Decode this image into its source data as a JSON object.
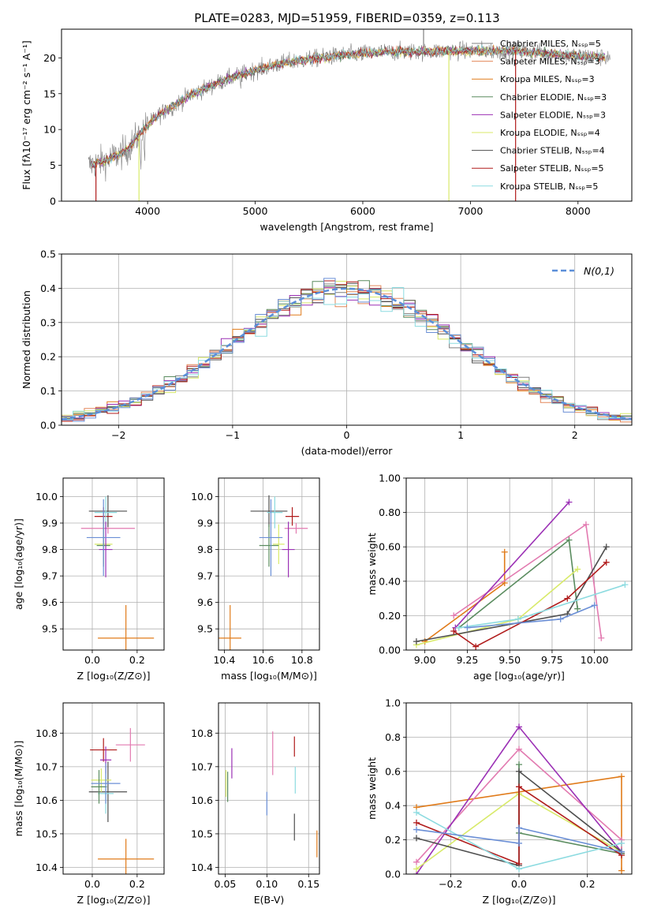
{
  "figure": {
    "title": "PLATE=0283, MJD=51959, FIBERID=0359, z=0.113",
    "colors": {
      "chabrier_miles": "#7f7f7f",
      "salpeter_miles": "#e3875a",
      "kroupa_miles": "#e07b1a",
      "chabrier_elodie": "#5a8c5f",
      "salpeter_elodie": "#9b30b5",
      "kroupa_elodie": "#d8ea6a",
      "chabrier_stelib": "#4f4f4f",
      "salpeter_stelib": "#b01b1b",
      "kroupa_stelib": "#8cdbe0",
      "normal_line": "#5b8fd9",
      "extra_blue": "#6b8fd6",
      "extra_pink": "#e27ab0"
    }
  },
  "chart_data": [
    {
      "type": "line",
      "title": "PLATE=0283, MJD=51959, FIBERID=0359, z=0.113",
      "xlabel": "wavelength [Angstrom, rest frame]",
      "ylabel": "Flux [fλ10⁻¹⁷ erg cm⁻² s⁻¹ A⁻¹]",
      "xlim": [
        3200,
        8500
      ],
      "ylim": [
        0,
        24
      ],
      "xticks": [
        4000,
        5000,
        6000,
        7000,
        8000
      ],
      "yticks": [
        0,
        5,
        10,
        15,
        20
      ],
      "legend_position": "top-right",
      "series": [
        {
          "name": "Chabrier MILES, Nₛₛₚ=5",
          "color": "#7f7f7f"
        },
        {
          "name": "Salpeter MILES, Nₛₛₚ=3",
          "color": "#e3875a"
        },
        {
          "name": "Kroupa MILES, Nₛₛₚ=3",
          "color": "#e07b1a"
        },
        {
          "name": "Chabrier ELODIE, Nₛₛₚ=3",
          "color": "#5a8c5f"
        },
        {
          "name": "Salpeter ELODIE, Nₛₛₚ=3",
          "color": "#9b30b5"
        },
        {
          "name": "Kroupa ELODIE, Nₛₛₚ=4",
          "color": "#d8ea6a"
        },
        {
          "name": "Chabrier STELIB, Nₛₛₚ=4",
          "color": "#4f4f4f"
        },
        {
          "name": "Salpeter STELIB, Nₛₛₚ=5",
          "color": "#b01b1b"
        },
        {
          "name": "Kroupa STELIB, Nₛₛₚ=5",
          "color": "#8cdbe0"
        }
      ],
      "continuum": {
        "x": [
          3450,
          3600,
          3800,
          3950,
          4100,
          4400,
          4700,
          5000,
          5300,
          5600,
          5900,
          6200,
          6600,
          7000,
          7400,
          7800,
          8200
        ],
        "y": [
          5.0,
          5.6,
          7.0,
          9.8,
          12.0,
          14.8,
          16.8,
          18.3,
          19.4,
          20.0,
          20.5,
          20.8,
          20.9,
          21.0,
          21.0,
          20.5,
          20.1
        ]
      }
    },
    {
      "type": "bar",
      "xlabel": "(data-model)/error",
      "ylabel": "Normed distribution",
      "xlim": [
        -2.5,
        2.5
      ],
      "ylim": [
        0,
        0.5
      ],
      "xticks": [
        -2,
        -1,
        0,
        1,
        2
      ],
      "yticks": [
        0.0,
        0.1,
        0.2,
        0.3,
        0.4,
        0.5
      ],
      "bin_width": 0.1,
      "normal": {
        "name": "N(0,1)",
        "mean": 0,
        "sigma": 1
      },
      "legend_position": "top-right"
    },
    {
      "type": "scatter",
      "xlabel": "Z [log₁₀(Z/Z⊙)]",
      "ylabel": "age  [log₁₀(age/yr)]",
      "xlim": [
        -0.13,
        0.32
      ],
      "ylim": [
        9.42,
        10.07
      ],
      "xticks": [
        0.0,
        0.2
      ],
      "yticks": [
        9.5,
        9.6,
        9.7,
        9.8,
        9.9,
        10.0
      ],
      "points": [
        {
          "x": 0.15,
          "y": 9.465,
          "xerr": 0.25,
          "yerr": 0.25,
          "color": "#e07b1a"
        },
        {
          "x": 0.07,
          "y": 9.88,
          "xerr": 0.24,
          "yerr": 0.04,
          "color": "#e27ab0"
        },
        {
          "x": 0.07,
          "y": 9.945,
          "xerr": 0.17,
          "yerr": 0.12,
          "color": "#4f4f4f"
        },
        {
          "x": 0.05,
          "y": 9.925,
          "xerr": 0.08,
          "yerr": 0.07,
          "color": "#b01b1b"
        },
        {
          "x": 0.06,
          "y": 9.94,
          "xerr": 0.1,
          "yerr": 0.12,
          "color": "#8cdbe0"
        },
        {
          "x": 0.05,
          "y": 9.82,
          "xerr": 0.08,
          "yerr": 0.15,
          "color": "#d8ea6a"
        },
        {
          "x": 0.05,
          "y": 9.815,
          "xerr": 0.06,
          "yerr": 0.16,
          "color": "#5a8c5f"
        },
        {
          "x": 0.06,
          "y": 9.8,
          "xerr": 0.06,
          "yerr": 0.21,
          "color": "#9b30b5"
        },
        {
          "x": 0.05,
          "y": 9.845,
          "xerr": 0.15,
          "yerr": 0.29,
          "color": "#6b8fd6"
        }
      ]
    },
    {
      "type": "scatter",
      "xlabel": "mass [log₁₀(M/M⊙)]",
      "xlim": [
        10.37,
        10.89
      ],
      "ylim": [
        9.42,
        10.07
      ],
      "xticks": [
        10.4,
        10.6,
        10.8
      ],
      "yticks": [
        9.5,
        9.6,
        9.7,
        9.8,
        9.9,
        10.0
      ],
      "points": [
        {
          "x": 10.43,
          "y": 9.465,
          "xerr": 0.115,
          "yerr": 0.25,
          "color": "#e07b1a"
        },
        {
          "x": 10.77,
          "y": 9.88,
          "xerr": 0.12,
          "yerr": 0.04,
          "color": "#e27ab0"
        },
        {
          "x": 10.63,
          "y": 9.945,
          "xerr": 0.19,
          "yerr": 0.12,
          "color": "#4f4f4f"
        },
        {
          "x": 10.75,
          "y": 9.925,
          "xerr": 0.07,
          "yerr": 0.07,
          "color": "#b01b1b"
        },
        {
          "x": 10.66,
          "y": 9.94,
          "xerr": 0.08,
          "yerr": 0.12,
          "color": "#8cdbe0"
        },
        {
          "x": 10.68,
          "y": 9.82,
          "xerr": 0.06,
          "yerr": 0.15,
          "color": "#d8ea6a"
        },
        {
          "x": 10.63,
          "y": 9.815,
          "xerr": 0.1,
          "yerr": 0.16,
          "color": "#5a8c5f"
        },
        {
          "x": 10.73,
          "y": 9.8,
          "xerr": 0.065,
          "yerr": 0.21,
          "color": "#9b30b5"
        },
        {
          "x": 10.64,
          "y": 9.845,
          "xerr": 0.12,
          "yerr": 0.29,
          "color": "#6b8fd6"
        }
      ]
    },
    {
      "type": "line",
      "xlabel": "age  [log₁₀(age/yr)]",
      "ylabel": "mass weight",
      "xlim": [
        8.89,
        10.22
      ],
      "ylim": [
        0,
        1.0
      ],
      "xticks": [
        9.0,
        9.25,
        9.5,
        9.75,
        10.0
      ],
      "yticks": [
        0.0,
        0.2,
        0.4,
        0.6,
        0.8,
        1.0
      ],
      "series": [
        {
          "color": "#e07b1a",
          "x": [
            9.0,
            9.47,
            9.47
          ],
          "y": [
            0.05,
            0.39,
            0.57
          ]
        },
        {
          "color": "#e27ab0",
          "x": [
            9.17,
            9.95,
            10.04
          ],
          "y": [
            0.2,
            0.73,
            0.07
          ]
        },
        {
          "color": "#9b30b5",
          "x": [
            9.18,
            9.85
          ],
          "y": [
            0.13,
            0.86
          ]
        },
        {
          "color": "#5a8c5f",
          "x": [
            9.2,
            9.85,
            9.9
          ],
          "y": [
            0.13,
            0.64,
            0.24
          ]
        },
        {
          "color": "#d8ea6a",
          "x": [
            8.95,
            9.55,
            9.9
          ],
          "y": [
            0.03,
            0.18,
            0.47
          ]
        },
        {
          "color": "#4f4f4f",
          "x": [
            8.95,
            9.84,
            10.07
          ],
          "y": [
            0.05,
            0.21,
            0.6
          ]
        },
        {
          "color": "#b01b1b",
          "x": [
            9.17,
            9.3,
            9.84,
            10.07
          ],
          "y": [
            0.11,
            0.02,
            0.3,
            0.51
          ]
        },
        {
          "color": "#8cdbe0",
          "x": [
            9.2,
            9.55,
            10.18
          ],
          "y": [
            0.13,
            0.18,
            0.38
          ]
        },
        {
          "color": "#6b8fd6",
          "x": [
            9.25,
            9.8,
            10.0
          ],
          "y": [
            0.13,
            0.18,
            0.26
          ]
        }
      ]
    },
    {
      "type": "scatter",
      "xlabel": "Z [log₁₀(Z/Z⊙)]",
      "ylabel": "mass [log₁₀(M/M⊙)]",
      "xlim": [
        -0.13,
        0.32
      ],
      "ylim": [
        10.38,
        10.89
      ],
      "xticks": [
        0.0,
        0.2
      ],
      "yticks": [
        10.4,
        10.5,
        10.6,
        10.7,
        10.8
      ],
      "points": [
        {
          "x": 0.15,
          "y": 10.425,
          "xerr": 0.25,
          "yerr": 0.12,
          "color": "#e07b1a"
        },
        {
          "x": 0.17,
          "y": 10.765,
          "xerr": 0.13,
          "yerr": 0.1,
          "color": "#e27ab0"
        },
        {
          "x": 0.07,
          "y": 10.625,
          "xerr": 0.17,
          "yerr": 0.18,
          "color": "#4f4f4f"
        },
        {
          "x": 0.05,
          "y": 10.75,
          "xerr": 0.12,
          "yerr": 0.07,
          "color": "#b01b1b"
        },
        {
          "x": 0.06,
          "y": 10.62,
          "xerr": 0.07,
          "yerr": 0.12,
          "color": "#8cdbe0"
        },
        {
          "x": 0.04,
          "y": 10.66,
          "xerr": 0.09,
          "yerr": 0.07,
          "color": "#d8ea6a"
        },
        {
          "x": 0.03,
          "y": 10.64,
          "xerr": 0.07,
          "yerr": 0.1,
          "color": "#5a8c5f"
        },
        {
          "x": 0.06,
          "y": 10.72,
          "xerr": 0.05,
          "yerr": 0.08,
          "color": "#9b30b5"
        },
        {
          "x": 0.06,
          "y": 10.65,
          "xerr": 0.13,
          "yerr": 0.12,
          "color": "#6b8fd6"
        }
      ]
    },
    {
      "type": "scatter",
      "xlabel": "E(B-V)",
      "xlim": [
        0.042,
        0.163
      ],
      "ylim": [
        10.38,
        10.89
      ],
      "xticks": [
        0.05,
        0.1,
        0.15
      ],
      "yticks": [
        10.4,
        10.5,
        10.6,
        10.7,
        10.8
      ],
      "points": [
        {
          "x": 0.16,
          "y": 10.47,
          "yerr": 0.08,
          "color": "#e07b1a"
        },
        {
          "x": 0.107,
          "y": 10.74,
          "yerr": 0.13,
          "color": "#e27ab0"
        },
        {
          "x": 0.133,
          "y": 10.52,
          "yerr": 0.08,
          "color": "#4f4f4f"
        },
        {
          "x": 0.133,
          "y": 10.76,
          "yerr": 0.06,
          "color": "#b01b1b"
        },
        {
          "x": 0.134,
          "y": 10.66,
          "yerr": 0.08,
          "color": "#8cdbe0"
        },
        {
          "x": 0.051,
          "y": 10.65,
          "yerr": 0.08,
          "color": "#d8ea6a"
        },
        {
          "x": 0.053,
          "y": 10.64,
          "yerr": 0.09,
          "color": "#5a8c5f"
        },
        {
          "x": 0.058,
          "y": 10.71,
          "yerr": 0.09,
          "color": "#9b30b5"
        },
        {
          "x": 0.1,
          "y": 10.59,
          "yerr": 0.07,
          "color": "#6b8fd6"
        }
      ]
    },
    {
      "type": "line",
      "xlabel": "Z [log₁₀(Z/Z⊙)]",
      "ylabel": "mass weight",
      "xlim": [
        -0.33,
        0.33
      ],
      "ylim": [
        0,
        1.0
      ],
      "xticks": [
        -0.2,
        0.0,
        0.2
      ],
      "yticks": [
        0.0,
        0.2,
        0.4,
        0.6,
        0.8,
        1.0
      ],
      "series": [
        {
          "color": "#e07b1a",
          "x": [
            -0.3,
            0.3,
            0.3,
            0.3
          ],
          "y": [
            0.39,
            0.57,
            0.02,
            0.12
          ]
        },
        {
          "color": "#e27ab0",
          "x": [
            -0.3,
            0.0,
            0.3,
            0.3
          ],
          "y": [
            0.07,
            0.73,
            0.2,
            0.12
          ]
        },
        {
          "color": "#9b30b5",
          "x": [
            -0.3,
            0.0,
            0.3
          ],
          "y": [
            0.0,
            0.86,
            0.13
          ]
        },
        {
          "color": "#5a8c5f",
          "x": [
            0.0,
            0.0,
            0.3
          ],
          "y": [
            0.64,
            0.24,
            0.12
          ]
        },
        {
          "color": "#d8ea6a",
          "x": [
            -0.3,
            0.0,
            0.3
          ],
          "y": [
            0.03,
            0.47,
            0.13
          ]
        },
        {
          "color": "#4f4f4f",
          "x": [
            -0.3,
            0.0,
            0.0,
            0.3
          ],
          "y": [
            0.21,
            0.05,
            0.6,
            0.13
          ]
        },
        {
          "color": "#b01b1b",
          "x": [
            -0.3,
            0.0,
            0.0,
            0.3
          ],
          "y": [
            0.3,
            0.06,
            0.51,
            0.11
          ]
        },
        {
          "color": "#8cdbe0",
          "x": [
            -0.3,
            0.0,
            0.3
          ],
          "y": [
            0.36,
            0.03,
            0.18
          ]
        },
        {
          "color": "#6b8fd6",
          "x": [
            -0.3,
            0.0,
            0.0,
            0.3
          ],
          "y": [
            0.26,
            0.18,
            0.27,
            0.13
          ]
        }
      ]
    }
  ]
}
